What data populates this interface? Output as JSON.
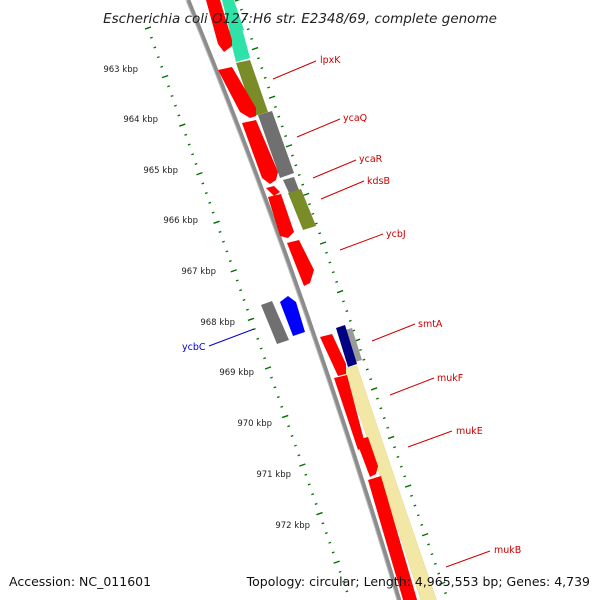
{
  "title": "Escherichia coli O127:H6 str. E2348/69, complete genome",
  "accession": "Accession: NC_011601",
  "topology": "Topology: circular; Length: 4,965,553 bp; Genes: 4,739",
  "colors": {
    "cds": "#ff0000",
    "cds_dark": "#c80000",
    "gene_label": "#cc0000",
    "highlight_label": "#0000cc",
    "blue_feature": "#0000ff",
    "navy_feature": "#000080",
    "gray_feature": "#707070",
    "olive_feature": "#7a8c28",
    "teal_feature": "#2fe3a8",
    "yellow_band": "#f2e7a4",
    "backbone": "#808080",
    "tick_green": "#007000"
  },
  "ticks": [
    "963 kbp",
    "964 kbp",
    "965 kbp",
    "966 kbp",
    "967 kbp",
    "968 kbp",
    "969 kbp",
    "970 kbp",
    "971 kbp",
    "972 kbp"
  ],
  "genes": [
    {
      "name": "lpxK",
      "color": "red"
    },
    {
      "name": "ycaQ",
      "color": "red"
    },
    {
      "name": "ycaR",
      "color": "red"
    },
    {
      "name": "kdsB",
      "color": "red"
    },
    {
      "name": "ycbJ",
      "color": "red"
    },
    {
      "name": "smtA",
      "color": "red"
    },
    {
      "name": "mukF",
      "color": "red"
    },
    {
      "name": "mukE",
      "color": "red"
    },
    {
      "name": "mukB",
      "color": "red"
    },
    {
      "name": "ycbC",
      "color": "blue"
    }
  ]
}
